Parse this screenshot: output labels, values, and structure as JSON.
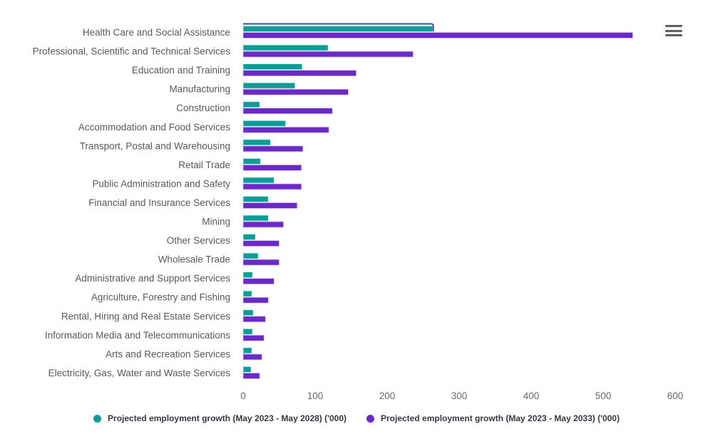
{
  "chart_data": {
    "type": "bar",
    "orientation": "horizontal",
    "title": "",
    "xlabel": "",
    "ylabel": "",
    "xlim": [
      0,
      600
    ],
    "xticks": [
      0,
      100,
      200,
      300,
      400,
      500,
      600
    ],
    "grid": false,
    "legend_position": "bottom-center",
    "categories": [
      "Health Care and Social Assistance",
      "Professional, Scientific and Technical Services",
      "Education and Training",
      "Manufacturing",
      "Construction",
      "Accommodation and Food Services",
      "Transport, Postal and Warehousing",
      "Retail Trade",
      "Public Administration and Safety",
      "Financial and Insurance Services",
      "Mining",
      "Other Services",
      "Wholesale Trade",
      "Administrative and Support Services",
      "Agriculture, Forestry and Fishing",
      "Rental, Hiring and Real Estate Services",
      "Information Media and Telecommunications",
      "Arts and Recreation Services",
      "Electricity, Gas, Water and Waste Services"
    ],
    "series": [
      {
        "name": "Projected employment growth (May 2023 - May 2028) ('000)",
        "color": "#0e9c96",
        "values": [
          263,
          118,
          82,
          72,
          23,
          59,
          38,
          24,
          43,
          35,
          35,
          17,
          21,
          13,
          12,
          14,
          13,
          12,
          11
        ]
      },
      {
        "name": "Projected employment growth (May 2023 - May 2033) ('000)",
        "color": "#6a2ac6",
        "values": [
          541,
          236,
          157,
          146,
          124,
          119,
          83,
          81,
          81,
          75,
          56,
          50,
          50,
          43,
          35,
          31,
          29,
          26,
          23
        ]
      }
    ],
    "highlighted_category": "Health Care and Social Assistance"
  },
  "ui": {
    "menu_icon": "hamburger-menu-icon",
    "highlight_color": "#2a4fa0"
  }
}
